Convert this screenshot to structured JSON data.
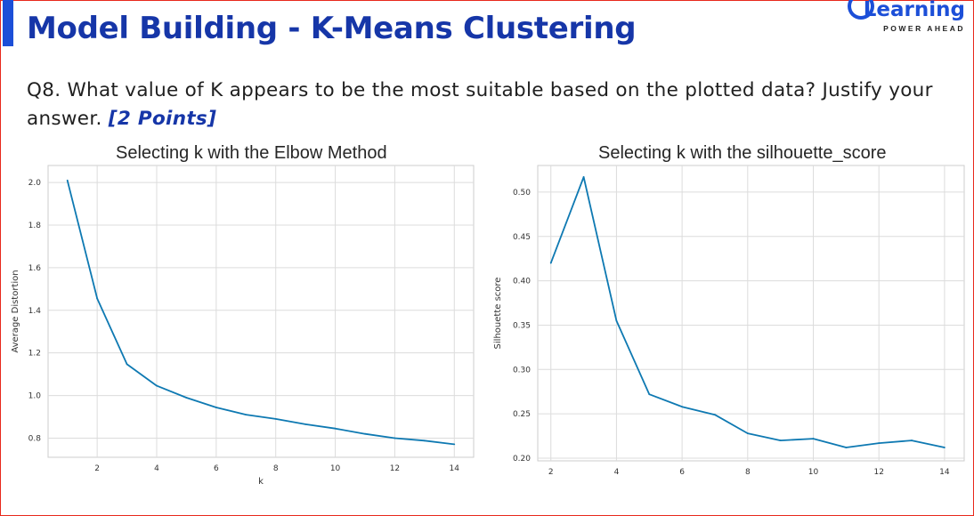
{
  "header": {
    "title": "Model Building - K-Means Clustering",
    "logo": {
      "word": "Learning",
      "tagline": "POWER AHEAD",
      "icon": "g-logo-icon",
      "color": "#1c4fd8"
    }
  },
  "question": {
    "text": "Q8. What value of K appears to be the most suitable based on the plotted data? Justify your answer. ",
    "points": "[2 Points]"
  },
  "colors": {
    "title": "#1636a8",
    "frame": "#e8291c",
    "line": "#0e79b2",
    "grid": "#dcdcdc"
  },
  "chart_data": [
    {
      "type": "line",
      "title": "Selecting k with the Elbow Method",
      "xlabel": "k",
      "ylabel": "Average Distortion",
      "x": [
        1,
        2,
        3,
        4,
        5,
        6,
        7,
        8,
        9,
        10,
        11,
        12,
        13,
        14
      ],
      "values": [
        2.01,
        1.455,
        1.147,
        1.046,
        0.99,
        0.944,
        0.91,
        0.89,
        0.865,
        0.845,
        0.82,
        0.8,
        0.788,
        0.771
      ],
      "xlim": [
        0.35,
        14.65
      ],
      "ylim": [
        0.71,
        2.08
      ],
      "xticks": [
        2,
        4,
        6,
        8,
        10,
        12,
        14
      ],
      "yticks": [
        0.8,
        1.0,
        1.2,
        1.4,
        1.6,
        1.8,
        2.0
      ],
      "ytick_labels": [
        "0.8",
        "1.0",
        "1.2",
        "1.4",
        "1.6",
        "1.8",
        "2.0"
      ],
      "grid": true
    },
    {
      "type": "line",
      "title": "Selecting k with the silhouette_score",
      "xlabel": "",
      "ylabel": "Silhouette score",
      "x": [
        2,
        3,
        4,
        5,
        6,
        7,
        8,
        9,
        10,
        11,
        12,
        13,
        14
      ],
      "values": [
        0.42,
        0.517,
        0.355,
        0.272,
        0.258,
        0.249,
        0.228,
        0.22,
        0.222,
        0.212,
        0.217,
        0.22,
        0.212
      ],
      "xlim": [
        1.6,
        14.6
      ],
      "ylim": [
        0.197,
        0.53
      ],
      "xticks": [
        2,
        4,
        6,
        8,
        10,
        12,
        14
      ],
      "yticks": [
        0.2,
        0.25,
        0.3,
        0.35,
        0.4,
        0.45,
        0.5
      ],
      "ytick_labels": [
        "0.20",
        "0.25",
        "0.30",
        "0.35",
        "0.40",
        "0.45",
        "0.50"
      ],
      "grid": true
    }
  ]
}
